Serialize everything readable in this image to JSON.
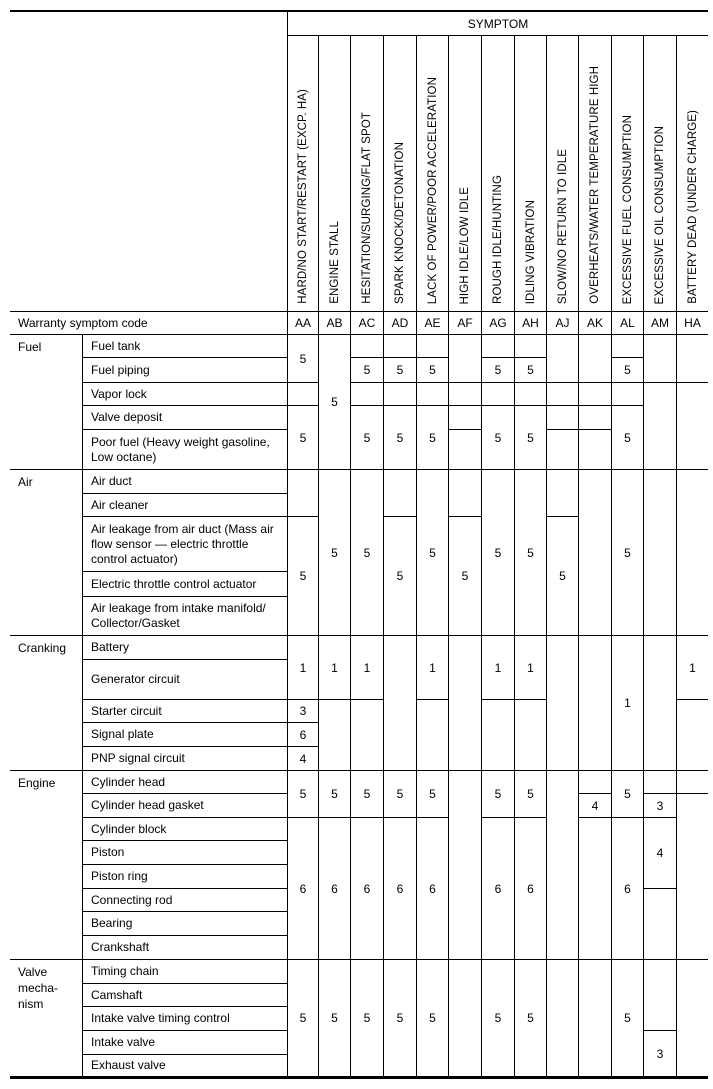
{
  "header": {
    "symptom_label": "SYMPTOM",
    "warranty_label": "Warranty symptom code"
  },
  "columns": [
    {
      "code": "AA",
      "label": "HARD/NO START/RESTART (EXCP. HA)"
    },
    {
      "code": "AB",
      "label": "ENGINE STALL"
    },
    {
      "code": "AC",
      "label": "HESITATION/SURGING/FLAT SPOT"
    },
    {
      "code": "AD",
      "label": "SPARK KNOCK/DETONATION"
    },
    {
      "code": "AE",
      "label": "LACK OF POWER/POOR ACCELERATION"
    },
    {
      "code": "AF",
      "label": "HIGH IDLE/LOW IDLE"
    },
    {
      "code": "AG",
      "label": "ROUGH IDLE/HUNTING"
    },
    {
      "code": "AH",
      "label": "IDLING VIBRATION"
    },
    {
      "code": "AJ",
      "label": "SLOW/NO RETURN TO IDLE"
    },
    {
      "code": "AK",
      "label": "OVERHEATS/WATER TEMPERATURE HIGH"
    },
    {
      "code": "AL",
      "label": "EXCESSIVE FUEL CONSUMPTION"
    },
    {
      "code": "AM",
      "label": "EXCESSIVE OIL CONSUMPTION"
    },
    {
      "code": "HA",
      "label": "BATTERY DEAD (UNDER CHARGE)"
    }
  ],
  "categories": [
    {
      "name": "Fuel",
      "rows": [
        0,
        4
      ]
    },
    {
      "name": "Air",
      "rows": [
        5,
        9
      ]
    },
    {
      "name": "Cranking",
      "rows": [
        10,
        14
      ]
    },
    {
      "name": "Engine",
      "rows": [
        15,
        22
      ]
    },
    {
      "name": "Valve\nmecha-\nnism",
      "rows": [
        23,
        27
      ]
    }
  ],
  "items": [
    "Fuel tank",
    "Fuel piping",
    "Vapor lock",
    "Valve deposit",
    "Poor fuel (Heavy weight gasoline, Low octane)",
    "Air duct",
    "Air cleaner",
    "Air leakage from air duct (Mass air flow sensor — electric throttle control actuator)",
    "Electric throttle control actuator",
    "Air leakage from intake manifold/ Collector/Gasket",
    "Battery",
    "Generator circuit",
    "Starter circuit",
    "Signal plate",
    "PNP signal circuit",
    "Cylinder head",
    "Cylinder head gasket",
    "Cylinder block",
    "Piston",
    "Piston ring",
    "Connecting rod",
    "Bearing",
    "Crankshaft",
    "Timing chain",
    "Camshaft",
    "Intake valve timing control",
    "Intake valve",
    "Exhaust valve"
  ],
  "grid": {
    "AA": [
      [
        0,
        1,
        "5"
      ],
      [
        2,
        2,
        ""
      ],
      [
        3,
        4,
        "5"
      ],
      [
        5,
        6,
        ""
      ],
      [
        7,
        9,
        "5"
      ],
      [
        10,
        11,
        "1"
      ],
      [
        12,
        12,
        "3"
      ],
      [
        13,
        13,
        "6"
      ],
      [
        14,
        14,
        "4"
      ],
      [
        15,
        16,
        "5"
      ],
      [
        17,
        22,
        "6"
      ],
      [
        23,
        27,
        "5"
      ]
    ],
    "AB": [
      [
        0,
        4,
        "5"
      ],
      [
        5,
        9,
        "5"
      ],
      [
        10,
        11,
        "1"
      ],
      [
        12,
        14,
        ""
      ],
      [
        15,
        16,
        "5"
      ],
      [
        17,
        22,
        "6"
      ],
      [
        23,
        27,
        "5"
      ]
    ],
    "AC": [
      [
        0,
        0,
        ""
      ],
      [
        1,
        1,
        "5"
      ],
      [
        2,
        2,
        ""
      ],
      [
        3,
        4,
        "5"
      ],
      [
        5,
        9,
        "5"
      ],
      [
        10,
        11,
        "1"
      ],
      [
        12,
        14,
        ""
      ],
      [
        15,
        16,
        "5"
      ],
      [
        17,
        22,
        "6"
      ],
      [
        23,
        27,
        "5"
      ]
    ],
    "AD": [
      [
        0,
        0,
        ""
      ],
      [
        1,
        1,
        "5"
      ],
      [
        2,
        2,
        ""
      ],
      [
        3,
        4,
        "5"
      ],
      [
        5,
        6,
        ""
      ],
      [
        7,
        9,
        "5"
      ],
      [
        10,
        14,
        ""
      ],
      [
        15,
        16,
        "5"
      ],
      [
        17,
        22,
        "6"
      ],
      [
        23,
        27,
        "5"
      ]
    ],
    "AE": [
      [
        0,
        0,
        ""
      ],
      [
        1,
        1,
        "5"
      ],
      [
        2,
        2,
        ""
      ],
      [
        3,
        4,
        "5"
      ],
      [
        5,
        9,
        "5"
      ],
      [
        10,
        11,
        "1"
      ],
      [
        12,
        14,
        ""
      ],
      [
        15,
        16,
        "5"
      ],
      [
        17,
        22,
        "6"
      ],
      [
        23,
        27,
        "5"
      ]
    ],
    "AF": [
      [
        0,
        1,
        ""
      ],
      [
        2,
        2,
        ""
      ],
      [
        3,
        3,
        ""
      ],
      [
        4,
        4,
        ""
      ],
      [
        5,
        6,
        ""
      ],
      [
        7,
        9,
        "5"
      ],
      [
        10,
        14,
        ""
      ],
      [
        15,
        22,
        ""
      ],
      [
        23,
        27,
        ""
      ]
    ],
    "AG": [
      [
        0,
        0,
        ""
      ],
      [
        1,
        1,
        "5"
      ],
      [
        2,
        2,
        ""
      ],
      [
        3,
        4,
        "5"
      ],
      [
        5,
        9,
        "5"
      ],
      [
        10,
        11,
        "1"
      ],
      [
        12,
        14,
        ""
      ],
      [
        15,
        16,
        "5"
      ],
      [
        17,
        22,
        "6"
      ],
      [
        23,
        27,
        "5"
      ]
    ],
    "AH": [
      [
        0,
        0,
        ""
      ],
      [
        1,
        1,
        "5"
      ],
      [
        2,
        2,
        ""
      ],
      [
        3,
        4,
        "5"
      ],
      [
        5,
        9,
        "5"
      ],
      [
        10,
        11,
        "1"
      ],
      [
        12,
        14,
        ""
      ],
      [
        15,
        16,
        "5"
      ],
      [
        17,
        22,
        "6"
      ],
      [
        23,
        27,
        "5"
      ]
    ],
    "AJ": [
      [
        0,
        1,
        ""
      ],
      [
        2,
        2,
        ""
      ],
      [
        3,
        3,
        ""
      ],
      [
        4,
        4,
        ""
      ],
      [
        5,
        6,
        ""
      ],
      [
        7,
        9,
        "5"
      ],
      [
        10,
        14,
        ""
      ],
      [
        15,
        22,
        ""
      ],
      [
        23,
        27,
        ""
      ]
    ],
    "AK": [
      [
        0,
        1,
        ""
      ],
      [
        2,
        2,
        ""
      ],
      [
        3,
        3,
        ""
      ],
      [
        4,
        4,
        ""
      ],
      [
        5,
        9,
        ""
      ],
      [
        10,
        14,
        ""
      ],
      [
        15,
        15,
        ""
      ],
      [
        16,
        16,
        "4"
      ],
      [
        17,
        22,
        ""
      ],
      [
        23,
        27,
        ""
      ]
    ],
    "AL": [
      [
        0,
        0,
        ""
      ],
      [
        1,
        1,
        "5"
      ],
      [
        2,
        2,
        ""
      ],
      [
        3,
        4,
        "5"
      ],
      [
        5,
        9,
        "5"
      ],
      [
        10,
        14,
        "1"
      ],
      [
        15,
        16,
        "5"
      ],
      [
        17,
        22,
        "6"
      ],
      [
        23,
        27,
        "5"
      ]
    ],
    "AM": [
      [
        0,
        1,
        ""
      ],
      [
        2,
        4,
        ""
      ],
      [
        5,
        9,
        ""
      ],
      [
        10,
        14,
        ""
      ],
      [
        15,
        15,
        ""
      ],
      [
        16,
        16,
        "3"
      ],
      [
        17,
        19,
        "4"
      ],
      [
        20,
        22,
        ""
      ],
      [
        23,
        25,
        ""
      ],
      [
        26,
        27,
        "3"
      ]
    ],
    "HA": [
      [
        0,
        1,
        ""
      ],
      [
        2,
        4,
        ""
      ],
      [
        5,
        9,
        ""
      ],
      [
        10,
        11,
        "1"
      ],
      [
        12,
        14,
        ""
      ],
      [
        15,
        15,
        ""
      ],
      [
        16,
        22,
        ""
      ],
      [
        23,
        27,
        ""
      ]
    ]
  }
}
